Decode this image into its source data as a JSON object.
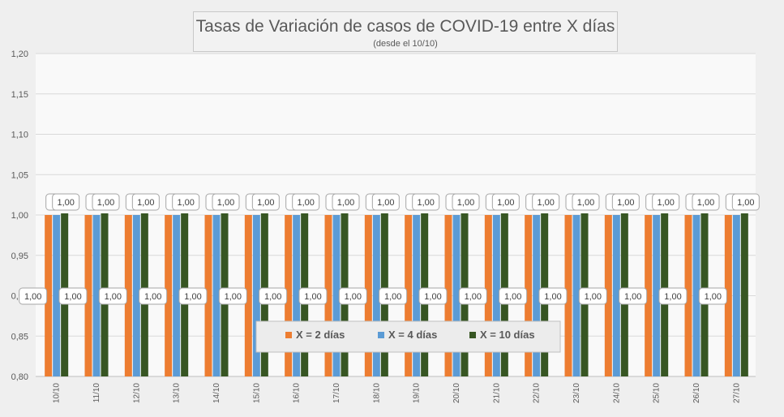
{
  "chart_data": {
    "type": "bar",
    "title": "Tasas de Variación de casos de COVID-19 entre X días",
    "subtitle": "(desde el 10/10)",
    "categories": [
      "10/10",
      "11/10",
      "12/10",
      "13/10",
      "14/10",
      "15/10",
      "16/10",
      "17/10",
      "18/10",
      "19/10",
      "20/10",
      "21/10",
      "22/10",
      "23/10",
      "24/10",
      "25/10",
      "26/10",
      "27/10"
    ],
    "series": [
      {
        "name": "X = 2 días",
        "color": "#ed7d31",
        "values": [
          1.0,
          1.0,
          1.0,
          1.0,
          1.0,
          1.0,
          1.0,
          1.0,
          1.0,
          1.0,
          1.0,
          1.0,
          1.0,
          1.0,
          1.0,
          1.0,
          1.0,
          1.0
        ],
        "labels": [
          "1,00",
          "1,00",
          "1,00",
          "1,00",
          "1,00",
          "1,00",
          "1,00",
          "1,00",
          "1,00",
          "1,00",
          "1,00",
          "1,00",
          "1,00",
          "1,00",
          "1,00",
          "1,00",
          "1,00",
          "1,00"
        ]
      },
      {
        "name": "X = 4 días",
        "color": "#5b9bd5",
        "values": [
          1.0,
          1.0,
          1.0,
          1.0,
          1.0,
          1.0,
          1.0,
          1.0,
          1.0,
          1.0,
          1.0,
          1.0,
          1.0,
          1.0,
          1.0,
          1.0,
          1.0,
          1.0
        ],
        "labels": [
          "1",
          "1",
          "1",
          "1",
          "1",
          "1",
          "1",
          "1",
          "1",
          "1",
          "1",
          "1",
          "1",
          "1",
          "1",
          "1",
          "1",
          "1"
        ]
      },
      {
        "name": "X = 10 días",
        "color": "#375623",
        "values": [
          1.002,
          1.002,
          1.002,
          1.002,
          1.002,
          1.002,
          1.002,
          1.002,
          1.002,
          1.002,
          1.002,
          1.002,
          1.002,
          1.002,
          1.002,
          1.002,
          1.002,
          1.002
        ],
        "labels": [
          "1,00",
          "1,00",
          "1,00",
          "1,00",
          "1,00",
          "1,00",
          "1,00",
          "1,00",
          "1,00",
          "1,00",
          "1,00",
          "1,00",
          "1,00",
          "1,00",
          "1,00",
          "1,00",
          "1,00",
          "1,00"
        ]
      }
    ],
    "ylim": [
      0.8,
      1.2
    ],
    "yticks": [
      "0,80",
      "0,85",
      "0,90",
      "0,95",
      "1,00",
      "1,05",
      "1,10",
      "1,15",
      "1,20"
    ],
    "xlabel": "",
    "ylabel": "",
    "grid": true,
    "legend_position": "bottom-center-inside"
  }
}
